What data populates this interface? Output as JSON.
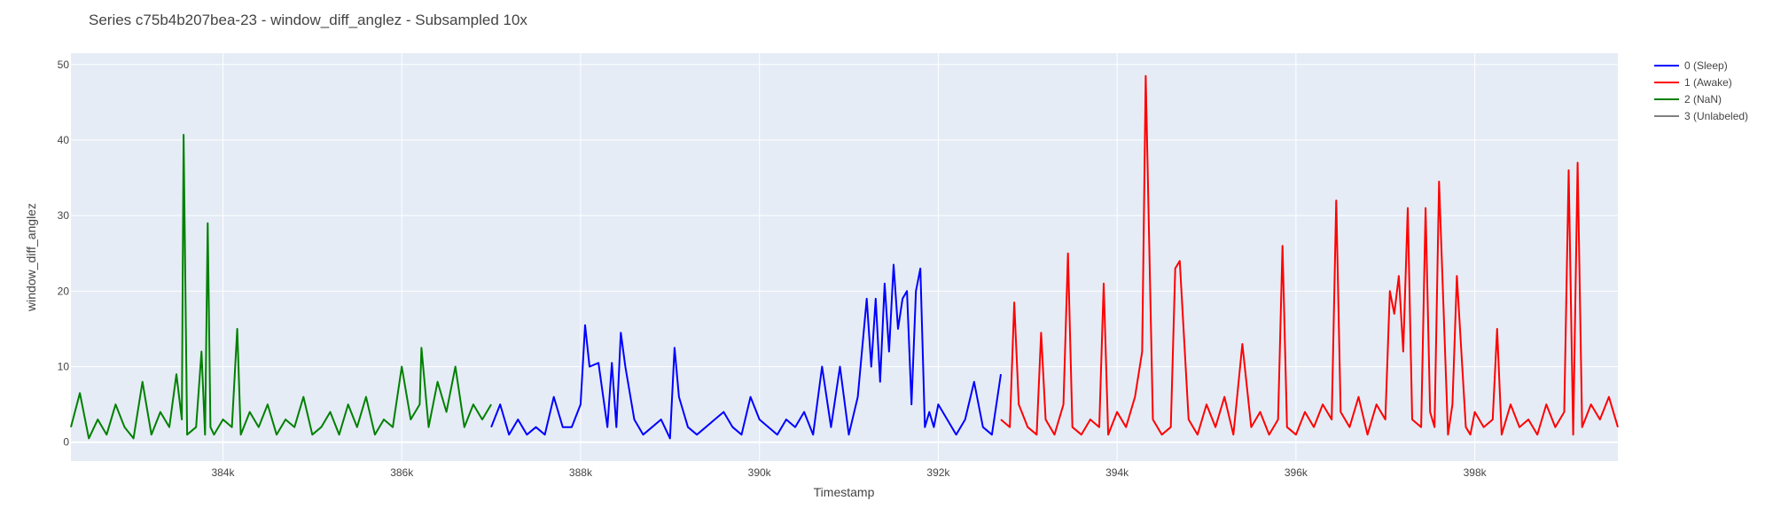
{
  "chart_data": {
    "type": "line",
    "title": "Series c75b4b207bea-23 - window_diff_anglez - Subsampled 10x",
    "xlabel": "Timestamp",
    "ylabel": "window_diff_anglez",
    "xlim": [
      382300,
      399600
    ],
    "ylim": [
      -2.5,
      51.5
    ],
    "x_ticks": [
      384000,
      386000,
      388000,
      390000,
      392000,
      394000,
      396000,
      398000
    ],
    "x_tick_labels": [
      "384k",
      "386k",
      "388k",
      "390k",
      "392k",
      "394k",
      "396k",
      "398k"
    ],
    "y_ticks": [
      0,
      10,
      20,
      30,
      40,
      50
    ],
    "y_tick_labels": [
      "0",
      "10",
      "20",
      "30",
      "40",
      "50"
    ],
    "grid": true,
    "legend_position": "top-right",
    "legend": [
      {
        "name": "0 (Sleep)",
        "color": "#0000ff"
      },
      {
        "name": "1 (Awake)",
        "color": "#ff0000"
      },
      {
        "name": "2 (NaN)",
        "color": "#008000"
      },
      {
        "name": "3 (Unlabeled)",
        "color": "#808080"
      }
    ],
    "series": [
      {
        "name": "2 (NaN)",
        "color": "#008000",
        "x": [
          382300,
          382400,
          382500,
          382600,
          382700,
          382800,
          382900,
          383000,
          383100,
          383200,
          383300,
          383400,
          383480,
          383540,
          383560,
          383600,
          383700,
          383760,
          383800,
          383830,
          383860,
          383900,
          384000,
          384100,
          384160,
          384200,
          384300,
          384400,
          384500,
          384600,
          384700,
          384800,
          384900,
          385000,
          385100,
          385200,
          385300,
          385400,
          385500,
          385600,
          385700,
          385800,
          385900,
          386000,
          386100,
          386200,
          386220,
          386300,
          386400,
          386500,
          386600,
          386700,
          386800,
          386900,
          387000
        ],
        "y": [
          2,
          6.5,
          0.5,
          3,
          1,
          5,
          2,
          0.5,
          8,
          1,
          4,
          2,
          9,
          3,
          40.7,
          1,
          2,
          12,
          1,
          29,
          2,
          1,
          3,
          2,
          15,
          1,
          4,
          2,
          5,
          1,
          3,
          2,
          6,
          1,
          2,
          4,
          1,
          5,
          2,
          6,
          1,
          3,
          2,
          10,
          3,
          5,
          12.5,
          2,
          8,
          4,
          10,
          2,
          5,
          3,
          5
        ]
      },
      {
        "name": "0 (Sleep)",
        "color": "#0000ff",
        "x": [
          387000,
          387100,
          387200,
          387300,
          387400,
          387500,
          387600,
          387700,
          387800,
          387900,
          388000,
          388050,
          388100,
          388200,
          388300,
          388350,
          388400,
          388450,
          388500,
          388600,
          388700,
          388800,
          388900,
          389000,
          389050,
          389100,
          389200,
          389300,
          389400,
          389500,
          389600,
          389700,
          389800,
          389900,
          390000,
          390100,
          390200,
          390300,
          390400,
          390500,
          390600,
          390700,
          390800,
          390900,
          391000,
          391100,
          391200,
          391250,
          391300,
          391350,
          391400,
          391450,
          391500,
          391550,
          391600,
          391650,
          391700,
          391750,
          391800,
          391850,
          391900,
          391950,
          392000,
          392100,
          392200,
          392300,
          392400,
          392500,
          392600,
          392700
        ],
        "y": [
          2,
          5,
          1,
          3,
          1,
          2,
          1,
          6,
          2,
          2,
          5,
          15.5,
          10,
          10.5,
          2,
          10.5,
          2,
          14.5,
          10,
          3,
          1,
          2,
          3,
          0.5,
          12.5,
          6,
          2,
          1,
          2,
          3,
          4,
          2,
          1,
          6,
          3,
          2,
          1,
          3,
          2,
          4,
          1,
          10,
          2,
          10,
          1,
          6,
          19,
          10,
          19,
          8,
          21,
          12,
          23.5,
          15,
          19,
          20,
          5,
          20,
          23,
          2,
          4,
          2,
          5,
          3,
          1,
          3,
          8,
          2,
          1,
          9
        ]
      },
      {
        "name": "1 (Awake)",
        "color": "#ff0000",
        "x": [
          392700,
          392800,
          392850,
          392900,
          393000,
          393100,
          393150,
          393200,
          393300,
          393400,
          393450,
          393500,
          393600,
          393700,
          393800,
          393850,
          393900,
          394000,
          394100,
          394200,
          394280,
          394320,
          394400,
          394500,
          394600,
          394650,
          394700,
          394800,
          394900,
          395000,
          395100,
          395200,
          395300,
          395400,
          395500,
          395600,
          395700,
          395800,
          395850,
          395900,
          396000,
          396100,
          396200,
          396300,
          396400,
          396450,
          396500,
          396600,
          396700,
          396800,
          396900,
          397000,
          397050,
          397100,
          397150,
          397200,
          397250,
          397300,
          397400,
          397450,
          397500,
          397550,
          397600,
          397700,
          397750,
          397800,
          397900,
          397950,
          398000,
          398100,
          398200,
          398250,
          398300,
          398400,
          398500,
          398600,
          398700,
          398800,
          398900,
          399000,
          399050,
          399100,
          399150,
          399200,
          399300,
          399400,
          399500,
          399600
        ],
        "y": [
          3,
          2,
          18.5,
          5,
          2,
          1,
          14.5,
          3,
          1,
          5,
          25,
          2,
          1,
          3,
          2,
          21,
          1,
          4,
          2,
          6,
          12,
          48.5,
          3,
          1,
          2,
          23,
          24,
          3,
          1,
          5,
          2,
          6,
          1,
          13,
          2,
          4,
          1,
          3,
          26,
          2,
          1,
          4,
          2,
          5,
          3,
          32,
          4,
          2,
          6,
          1,
          5,
          3,
          20,
          17,
          22,
          12,
          31,
          3,
          2,
          31,
          4,
          2,
          34.5,
          1,
          5,
          22,
          2,
          1,
          4,
          2,
          3,
          15,
          1,
          5,
          2,
          3,
          1,
          5,
          2,
          4,
          36,
          1,
          37,
          2,
          5,
          3,
          6,
          2
        ]
      }
    ]
  }
}
